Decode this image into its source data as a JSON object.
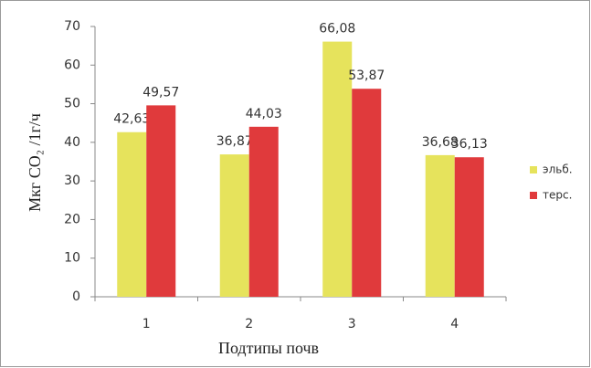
{
  "chart_data": {
    "type": "bar",
    "y_label": "Мкг CO₂ /1г/ч",
    "x_label": "Подтипы почв",
    "categories": [
      "1",
      "2",
      "3",
      "4"
    ],
    "series": [
      {
        "name": "эльб.",
        "color": "#e6e35c",
        "values": [
          42.63,
          36.87,
          66.08,
          36.68
        ],
        "value_labels": [
          "42,63",
          "36,87",
          "66,08",
          "36,68"
        ]
      },
      {
        "name": "терс.",
        "color": "#e03a3c",
        "values": [
          49.57,
          44.03,
          53.87,
          36.13
        ],
        "value_labels": [
          "49,57",
          "44,03",
          "53,87",
          "36,13"
        ]
      }
    ],
    "ylim": [
      0,
      70
    ],
    "yticks": [
      0,
      10,
      20,
      30,
      40,
      50,
      60,
      70
    ],
    "grid": false,
    "legend": "right"
  }
}
